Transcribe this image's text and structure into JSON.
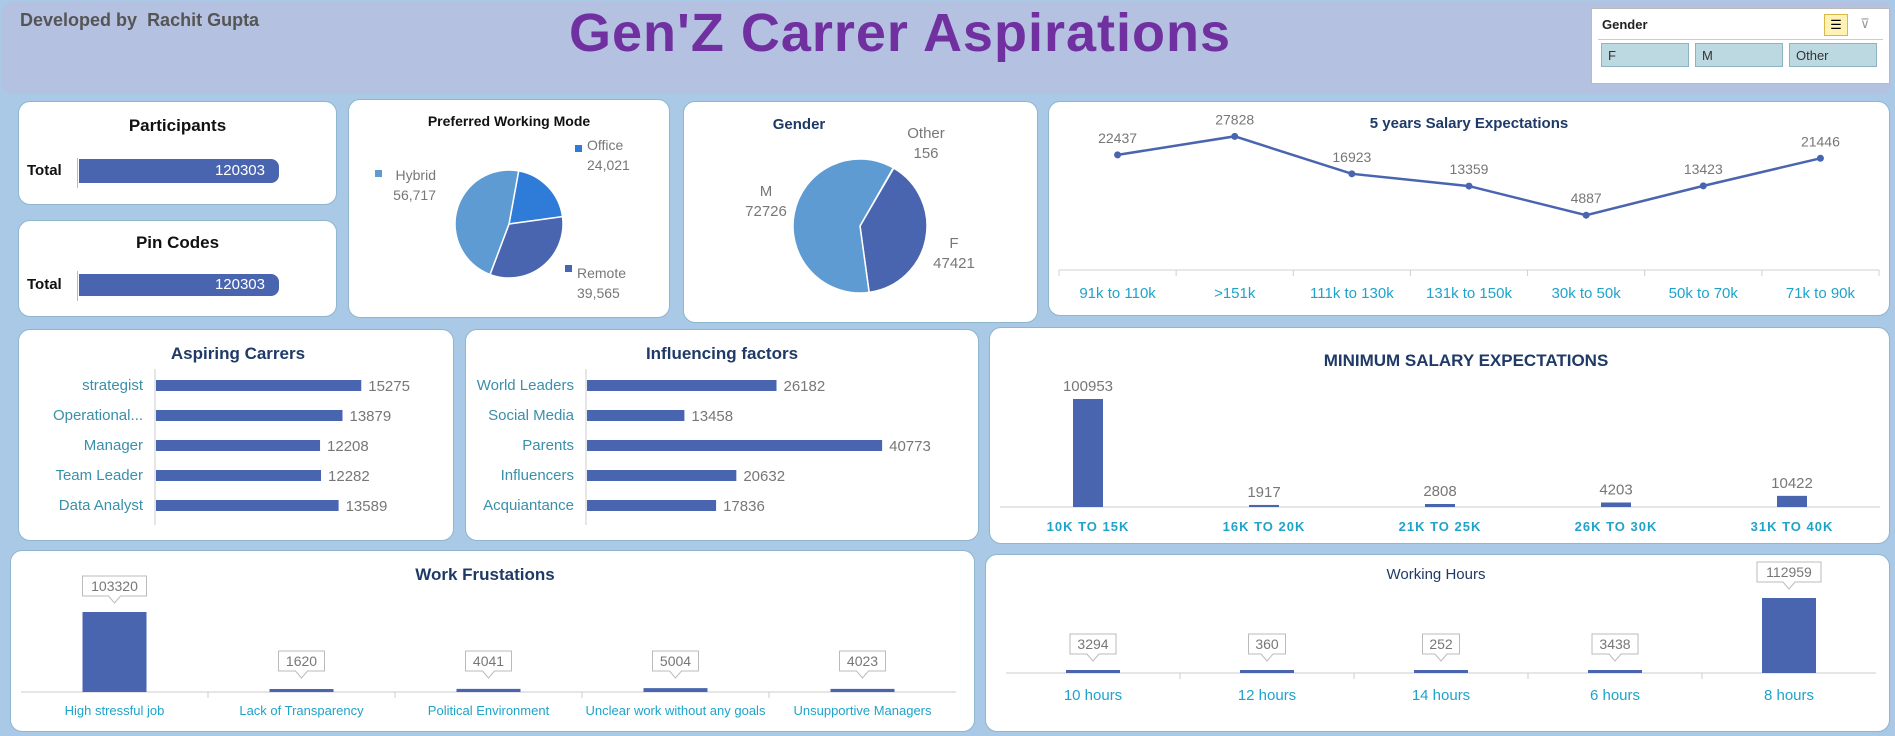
{
  "header": {
    "developer_prefix": "Developed by",
    "developer_name": "Rachit Gupta",
    "title": "Gen'Z Carrer Aspirations"
  },
  "slicer": {
    "title": "Gender",
    "options": [
      "F",
      "M",
      "Other"
    ],
    "icons": [
      "multi-select-icon",
      "clear-filter-icon"
    ]
  },
  "kpis": [
    {
      "title": "Participants",
      "label": "Total",
      "value": "120303"
    },
    {
      "title": "Pin Codes",
      "label": "Total",
      "value": "120303"
    }
  ],
  "colors": {
    "bar": "#4a65b0",
    "pie_light": "#5f9bd3",
    "pie_dark": "#4a65b0",
    "pie_mid": "#2f7bd8",
    "title_purple": "#7030a0",
    "axis_teal": "#1fa3c9"
  },
  "chart_data": [
    {
      "id": "working_mode",
      "type": "pie",
      "title": "Preferred Working Mode",
      "slices": [
        {
          "label": "Office",
          "value": 24021,
          "display": "24,021"
        },
        {
          "label": "Remote",
          "value": 39565,
          "display": "39,565"
        },
        {
          "label": "Hybrid",
          "value": 56717,
          "display": "56,717"
        }
      ]
    },
    {
      "id": "gender",
      "type": "pie",
      "title": "Gender",
      "slices": [
        {
          "label": "Other",
          "value": 156
        },
        {
          "label": "F",
          "value": 47421
        },
        {
          "label": "M",
          "value": 72726
        }
      ]
    },
    {
      "id": "salary_5y",
      "type": "line",
      "title": "5 years Salary Expectations",
      "categories": [
        "91k to 110k",
        ">151k",
        "111k to 130k",
        "131k to 150k",
        "30k to 50k",
        "50k to 70k",
        "71k to 90k"
      ],
      "values": [
        22437,
        27828,
        16923,
        13359,
        4887,
        13423,
        21446
      ]
    },
    {
      "id": "aspiring",
      "type": "bar",
      "orientation": "horizontal",
      "title": "Aspiring Carrers",
      "categories": [
        "strategist",
        "Operational...",
        "Manager",
        "Team Leader",
        "Data Analyst"
      ],
      "values": [
        15275,
        13879,
        12208,
        12282,
        13589
      ]
    },
    {
      "id": "influencing",
      "type": "bar",
      "orientation": "horizontal",
      "title": "Influencing factors",
      "categories": [
        "World Leaders",
        "Social Media",
        "Parents",
        "Influencers",
        "Acquiantance"
      ],
      "values": [
        26182,
        13458,
        40773,
        20632,
        17836
      ]
    },
    {
      "id": "min_salary",
      "type": "bar",
      "title": "MINIMUM SALARY EXPECTATIONS",
      "categories": [
        "10K TO 15K",
        "16K TO 20K",
        "21K TO 25K",
        "26K TO 30K",
        "31K TO 40K"
      ],
      "values": [
        100953,
        1917,
        2808,
        4203,
        10422
      ]
    },
    {
      "id": "frustrations",
      "type": "bar",
      "title": "Work Frustations",
      "categories": [
        "High stressful job",
        "Lack of Transparency",
        "Political Environment",
        "Unclear work without any goals",
        "Unsupportive Managers"
      ],
      "values": [
        103320,
        1620,
        4041,
        5004,
        4023
      ]
    },
    {
      "id": "hours",
      "type": "bar",
      "title": "Working Hours",
      "categories": [
        "10 hours",
        "12 hours",
        "14 hours",
        "6 hours",
        "8 hours"
      ],
      "values": [
        3294,
        360,
        252,
        3438,
        112959
      ]
    }
  ]
}
